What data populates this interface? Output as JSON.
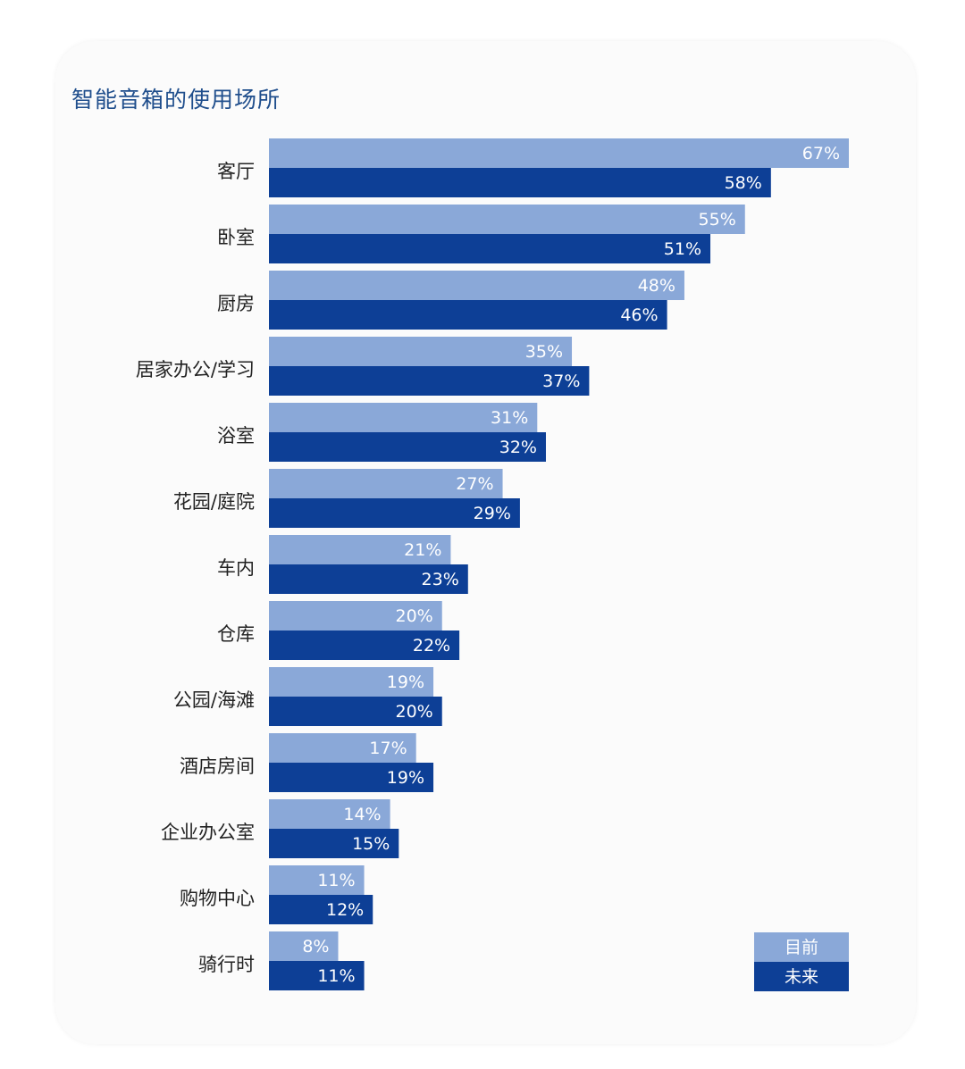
{
  "title": "智能音箱的使用场所",
  "chart_data": {
    "type": "bar",
    "orientation": "horizontal",
    "categories": [
      "客厅",
      "卧室",
      "厨房",
      "居家办公/学习",
      "浴室",
      "花园/庭院",
      "车内",
      "仓库",
      "公园/海滩",
      "酒店房间",
      "企业办公室",
      "购物中心",
      "骑行时"
    ],
    "series": [
      {
        "name": "目前",
        "color": "#8aa8d8",
        "values": [
          67,
          55,
          48,
          35,
          31,
          27,
          21,
          20,
          19,
          17,
          14,
          11,
          8
        ],
        "labels": [
          "67%",
          "55%",
          "48%",
          "35%",
          "31%",
          "27%",
          "21%",
          "20%",
          "19%",
          "17%",
          "14%",
          "11%",
          "8%"
        ]
      },
      {
        "name": "未来",
        "color": "#0d3f96",
        "values": [
          58,
          51,
          46,
          37,
          32,
          29,
          23,
          22,
          20,
          19,
          15,
          12,
          11
        ],
        "labels": [
          "58%",
          "51%",
          "46%",
          "37%",
          "32%",
          "29%",
          "23%",
          "22%",
          "20%",
          "19%",
          "15%",
          "12%",
          "11%"
        ]
      }
    ],
    "value_unit": "%",
    "xlim": [
      0,
      67
    ],
    "legend_position": "bottom-right",
    "grid": false
  }
}
